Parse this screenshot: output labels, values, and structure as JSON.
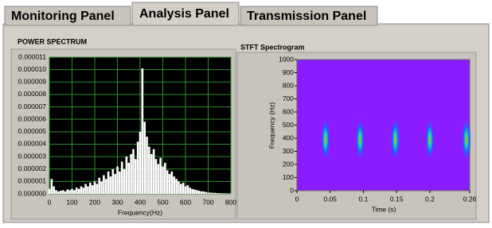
{
  "tabs": [
    "Monitoring Panel",
    "Analysis Panel",
    "Transmission Panel"
  ],
  "active_tab": 1,
  "chart_data": [
    {
      "type": "spectrum",
      "title": "POWER SPECTRUM",
      "x_label": "Frequency(Hz)",
      "x": [
        0,
        10,
        20,
        30,
        40,
        50,
        60,
        70,
        80,
        90,
        100,
        110,
        120,
        130,
        140,
        150,
        160,
        170,
        180,
        190,
        200,
        210,
        220,
        230,
        240,
        250,
        260,
        270,
        280,
        290,
        300,
        310,
        320,
        330,
        340,
        350,
        360,
        370,
        380,
        390,
        400,
        410,
        420,
        430,
        440,
        450,
        460,
        470,
        480,
        490,
        500,
        510,
        520,
        530,
        540,
        550,
        560,
        570,
        580,
        590,
        600,
        610,
        620,
        630,
        640,
        650,
        660,
        670,
        680,
        690,
        700,
        710,
        720,
        730,
        740,
        750,
        760,
        770,
        780,
        790,
        800
      ],
      "values": [
        4e-07,
        1.2e-06,
        6e-07,
        3e-07,
        2e-07,
        2.5e-07,
        3e-07,
        2e-07,
        3.5e-07,
        3e-07,
        4e-07,
        3e-07,
        5e-07,
        4e-07,
        6e-07,
        5e-07,
        8e-07,
        6e-07,
        9e-07,
        7e-07,
        1e-06,
        8e-07,
        1.3e-06,
        1e-06,
        1.5e-06,
        1.2e-06,
        1.8e-06,
        1.4e-06,
        2e-06,
        1.6e-06,
        2.2e-06,
        1.8e-06,
        2.6e-06,
        2e-06,
        3e-06,
        2.5e-06,
        3.2e-06,
        3.6e-06,
        2.8e-06,
        4.2e-06,
        5e-06,
        1.01e-05,
        5.8e-06,
        4.6e-06,
        3.8e-06,
        3.2e-06,
        3.6e-06,
        2.8e-06,
        2.4e-06,
        2.9e-06,
        2.2e-06,
        2.5e-06,
        1.9e-06,
        1.6e-06,
        1.8e-06,
        1.4e-06,
        1.2e-06,
        1e-06,
        8e-07,
        9e-07,
        6e-07,
        7e-07,
        5e-07,
        4e-07,
        3.5e-07,
        3e-07,
        2.5e-07,
        2e-07,
        2e-07,
        1.5e-07,
        1e-07,
        1e-07,
        8e-08,
        8e-08,
        6e-08,
        5e-08,
        5e-08,
        4e-08,
        4e-08,
        3e-08,
        3e-08
      ],
      "color": "#ffffff",
      "plot_background": "#000000",
      "grid": true,
      "grid_color": "#2e8b2e",
      "xlim": [
        0,
        800
      ],
      "xticks": [
        0,
        100,
        200,
        300,
        400,
        500,
        600,
        700,
        800
      ],
      "ylim": [
        0,
        1.1e-05
      ],
      "yticks": [
        {
          "value": 0,
          "label": "0.000000"
        },
        {
          "value": 1e-06,
          "label": "0.000001"
        },
        {
          "value": 2e-06,
          "label": "0.000002"
        },
        {
          "value": 3e-06,
          "label": "0.000003"
        },
        {
          "value": 4e-06,
          "label": "0.000004"
        },
        {
          "value": 5e-06,
          "label": "0.000005"
        },
        {
          "value": 6e-06,
          "label": "0.000006"
        },
        {
          "value": 7e-06,
          "label": "0.000007"
        },
        {
          "value": 8e-06,
          "label": "0.000008"
        },
        {
          "value": 9e-06,
          "label": "0.000009"
        },
        {
          "value": 1e-05,
          "label": "0.000010"
        },
        {
          "value": 1.1e-05,
          "label": "0.000011"
        }
      ]
    },
    {
      "type": "spectrogram",
      "title": "STFT Spectrogram",
      "x_label": "Time (s)",
      "y_label": "Frequency (Hz)",
      "x": [
        0.043,
        0.095,
        0.148,
        0.2,
        0.255
      ],
      "values": [
        390,
        390,
        390,
        390,
        390
      ],
      "plot_background": "#8a1cff",
      "xlim": [
        0,
        0.26
      ],
      "xticks": [
        0,
        0.05,
        0.1,
        0.15,
        0.2,
        0.26
      ],
      "ylim": [
        0,
        1000
      ],
      "yticks": [
        0,
        100,
        200,
        300,
        400,
        500,
        600,
        700,
        800,
        900,
        1000
      ]
    }
  ]
}
